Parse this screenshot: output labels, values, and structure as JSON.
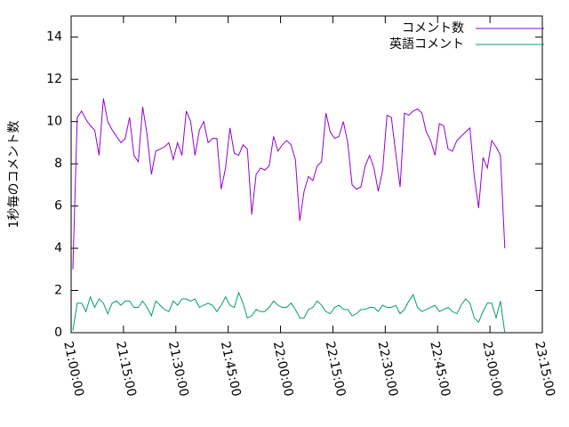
{
  "chart_data": {
    "type": "line",
    "y_label": "1秒毎のコメント数",
    "x": [
      "21:00:30",
      "21:01:45",
      "21:03:00",
      "21:04:15",
      "21:05:30",
      "21:06:45",
      "21:08:00",
      "21:09:15",
      "21:10:30",
      "21:11:45",
      "21:13:00",
      "21:14:15",
      "21:15:30",
      "21:16:45",
      "21:18:00",
      "21:19:15",
      "21:20:30",
      "21:21:45",
      "21:23:00",
      "21:24:15",
      "21:25:30",
      "21:26:45",
      "21:28:00",
      "21:29:15",
      "21:30:30",
      "21:31:45",
      "21:33:00",
      "21:34:15",
      "21:35:30",
      "21:36:45",
      "21:38:00",
      "21:39:15",
      "21:40:30",
      "21:41:45",
      "21:43:00",
      "21:44:15",
      "21:45:30",
      "21:46:45",
      "21:48:00",
      "21:49:15",
      "21:50:30",
      "21:51:45",
      "21:53:00",
      "21:54:15",
      "21:55:30",
      "21:56:45",
      "21:58:00",
      "21:59:15",
      "22:00:30",
      "22:01:45",
      "22:03:00",
      "22:04:15",
      "22:05:30",
      "22:06:45",
      "22:08:00",
      "22:09:15",
      "22:10:30",
      "22:11:45",
      "22:13:00",
      "22:14:15",
      "22:15:30",
      "22:16:45",
      "22:18:00",
      "22:19:15",
      "22:20:30",
      "22:21:45",
      "22:23:00",
      "22:24:15",
      "22:25:30",
      "22:26:45",
      "22:28:00",
      "22:29:15",
      "22:30:30",
      "22:31:45",
      "22:33:00",
      "22:34:15",
      "22:35:30",
      "22:36:45",
      "22:38:00",
      "22:39:15",
      "22:40:30",
      "22:41:45",
      "22:43:00",
      "22:44:15",
      "22:45:30",
      "22:46:45",
      "22:48:00",
      "22:49:15",
      "22:50:30",
      "22:51:45",
      "22:53:00",
      "22:54:15",
      "22:55:30",
      "22:56:45",
      "22:58:00",
      "22:59:15",
      "23:00:30",
      "23:01:45",
      "23:03:00",
      "23:04:15"
    ],
    "series": [
      {
        "name": "コメント数",
        "color": "#9400d3",
        "values": [
          3.0,
          10.2,
          10.5,
          10.1,
          9.8,
          9.6,
          8.4,
          11.1,
          10.0,
          9.6,
          9.3,
          9.0,
          9.2,
          10.2,
          8.4,
          8.1,
          10.7,
          9.4,
          7.5,
          8.6,
          8.7,
          8.8,
          9.0,
          8.2,
          9.0,
          8.4,
          10.5,
          10.0,
          8.4,
          9.6,
          10.0,
          9.0,
          9.2,
          9.2,
          6.8,
          7.8,
          9.7,
          8.5,
          8.4,
          8.9,
          8.7,
          5.6,
          7.5,
          7.8,
          7.7,
          7.9,
          9.3,
          8.6,
          8.9,
          9.1,
          8.9,
          8.2,
          5.3,
          6.7,
          7.4,
          7.2,
          7.9,
          8.1,
          10.4,
          9.5,
          9.2,
          9.3,
          10.0,
          9.0,
          7.0,
          6.8,
          6.9,
          7.9,
          8.4,
          7.8,
          6.7,
          7.7,
          10.3,
          10.2,
          8.5,
          6.9,
          10.4,
          10.3,
          10.5,
          10.6,
          10.4,
          9.5,
          9.1,
          8.4,
          9.9,
          9.8,
          8.7,
          8.6,
          9.1,
          9.3,
          9.5,
          9.7,
          7.4,
          5.9,
          8.3,
          7.8,
          9.1,
          8.8,
          8.4,
          4.0
        ]
      },
      {
        "name": "英語コメント",
        "color": "#009e73",
        "values": [
          0.1,
          1.4,
          1.4,
          1.0,
          1.7,
          1.2,
          1.6,
          1.4,
          0.9,
          1.4,
          1.5,
          1.3,
          1.5,
          1.5,
          1.2,
          1.2,
          1.5,
          1.2,
          0.8,
          1.5,
          1.3,
          1.1,
          1.0,
          1.5,
          1.3,
          1.6,
          1.6,
          1.5,
          1.6,
          1.2,
          1.3,
          1.4,
          1.3,
          1.0,
          1.3,
          1.7,
          1.3,
          1.2,
          1.9,
          1.4,
          0.7,
          0.8,
          1.1,
          1.0,
          1.0,
          1.2,
          1.5,
          1.3,
          1.2,
          1.2,
          1.4,
          1.1,
          0.7,
          0.7,
          1.1,
          1.2,
          1.5,
          1.3,
          1.0,
          0.9,
          1.2,
          1.3,
          1.1,
          1.1,
          0.8,
          0.9,
          1.1,
          1.1,
          1.2,
          1.2,
          1.0,
          1.3,
          1.2,
          1.2,
          1.3,
          0.9,
          1.1,
          1.5,
          1.8,
          1.2,
          1.0,
          1.1,
          1.2,
          1.3,
          1.0,
          1.1,
          1.2,
          1.0,
          0.9,
          1.3,
          1.6,
          1.4,
          0.7,
          0.5,
          1.0,
          1.4,
          1.4,
          0.7,
          1.5,
          0.0
        ]
      }
    ],
    "xlim": [
      "21:00:00",
      "23:15:00"
    ],
    "xticks": [
      "21:00:00",
      "21:15:00",
      "21:30:00",
      "21:45:00",
      "22:00:00",
      "22:15:00",
      "22:30:00",
      "22:45:00",
      "23:00:00",
      "23:15:00"
    ],
    "ylim": [
      0,
      15
    ],
    "yticks": [
      0,
      2,
      4,
      6,
      8,
      10,
      12,
      14
    ],
    "legend": "top-right"
  }
}
